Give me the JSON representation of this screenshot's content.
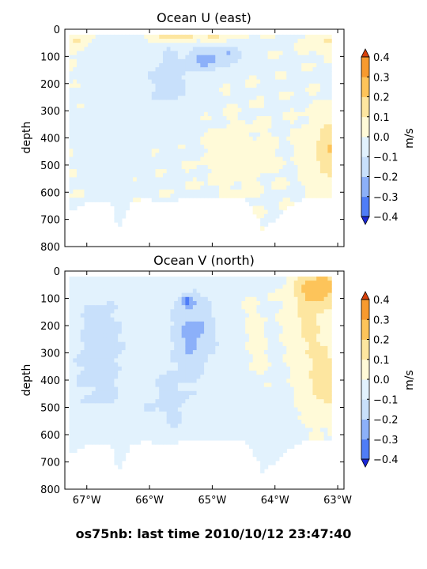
{
  "footer": {
    "text": "os75nb: last time 2010/10/12 23:47:40"
  },
  "colors": {
    "levels": [
      -0.4,
      -0.3,
      -0.2,
      -0.1,
      0.0,
      0.1,
      0.2,
      0.3,
      0.4
    ],
    "fills": [
      "#2a3cf5",
      "#4f7df7",
      "#8cb0f9",
      "#c8e0fb",
      "#e2f2fd",
      "#fffad8",
      "#fde6a0",
      "#fdc45a",
      "#f79a2e",
      "#ee5a14"
    ],
    "under": "#1a28d8",
    "over": "#d8400a"
  },
  "chart_data": [
    {
      "type": "heatmap",
      "title": "Ocean U (east)",
      "ylabel": "depth",
      "xlabel": "",
      "xlim": [
        -67.35,
        -62.9
      ],
      "ylim": [
        800,
        0
      ],
      "x_ticks": [
        -67,
        -66,
        -65,
        -64,
        -63
      ],
      "x_tick_labels": [
        "67°W",
        "66°W",
        "65°W",
        "64°W",
        "63°W"
      ],
      "y_ticks": [
        0,
        100,
        200,
        300,
        400,
        500,
        600,
        700,
        800
      ],
      "y_tick_labels": [
        "0",
        "100",
        "200",
        "300",
        "400",
        "500",
        "600",
        "700",
        "800"
      ],
      "colorbar": {
        "label": "m/s",
        "ticks": [
          -0.4,
          -0.3,
          -0.2,
          -0.1,
          0.0,
          0.1,
          0.2,
          0.3,
          0.4
        ],
        "tick_labels": [
          "−0.4",
          "−0.3",
          "−0.2",
          "−0.1",
          "0.0",
          "0.1",
          "0.2",
          "0.3",
          "0.4"
        ]
      },
      "max_depth": [
        [
          -67.3,
          670
        ],
        [
          -67.2,
          660
        ],
        [
          -67.0,
          640
        ],
        [
          -66.6,
          640
        ],
        [
          -66.5,
          740
        ],
        [
          -66.3,
          640
        ],
        [
          -66.1,
          620
        ],
        [
          -65.8,
          640
        ],
        [
          -65.4,
          620
        ],
        [
          -64.9,
          625
        ],
        [
          -64.5,
          620
        ],
        [
          -64.3,
          680
        ],
        [
          -64.2,
          740
        ],
        [
          -64.0,
          700
        ],
        [
          -63.7,
          640
        ],
        [
          -63.5,
          620
        ],
        [
          -63.2,
          620
        ],
        [
          -62.95,
          600
        ]
      ],
      "features": [
        {
          "x": -66.6,
          "z": 300,
          "sx": 0.35,
          "sz": 260,
          "v": -0.06
        },
        {
          "x": -65.7,
          "z": 180,
          "sx": 0.4,
          "sz": 160,
          "v": -0.13
        },
        {
          "x": -65.1,
          "z": 110,
          "sx": 0.25,
          "sz": 50,
          "v": -0.22
        },
        {
          "x": -64.7,
          "z": 90,
          "sx": 0.2,
          "sz": 50,
          "v": -0.16
        },
        {
          "x": -65.6,
          "z": 20,
          "sx": 0.35,
          "sz": 30,
          "v": 0.25
        },
        {
          "x": -64.9,
          "z": 20,
          "sx": 0.3,
          "sz": 30,
          "v": 0.15
        },
        {
          "x": -67.15,
          "z": 40,
          "sx": 0.15,
          "sz": 40,
          "v": 0.12
        },
        {
          "x": -63.1,
          "z": 450,
          "sx": 0.35,
          "sz": 120,
          "v": 0.2
        },
        {
          "x": -63.2,
          "z": 40,
          "sx": 0.25,
          "sz": 50,
          "v": 0.1
        },
        {
          "x": -64.6,
          "z": 470,
          "sx": 0.5,
          "sz": 120,
          "v": 0.05
        }
      ],
      "base": -0.01
    },
    {
      "type": "heatmap",
      "title": "Ocean V (north)",
      "ylabel": "depth",
      "xlabel": "",
      "xlim": [
        -67.35,
        -62.9
      ],
      "ylim": [
        800,
        0
      ],
      "x_ticks": [
        -67,
        -66,
        -65,
        -64,
        -63
      ],
      "x_tick_labels": [
        "67°W",
        "66°W",
        "65°W",
        "64°W",
        "63°W"
      ],
      "y_ticks": [
        0,
        100,
        200,
        300,
        400,
        500,
        600,
        700,
        800
      ],
      "y_tick_labels": [
        "0",
        "100",
        "200",
        "300",
        "400",
        "500",
        "600",
        "700",
        "800"
      ],
      "colorbar": {
        "label": "m/s",
        "ticks": [
          -0.4,
          -0.3,
          -0.2,
          -0.1,
          0.0,
          0.1,
          0.2,
          0.3,
          0.4
        ],
        "tick_labels": [
          "−0.4",
          "−0.3",
          "−0.2",
          "−0.1",
          "0.0",
          "0.1",
          "0.2",
          "0.3",
          "0.4"
        ]
      },
      "max_depth": [
        [
          -67.3,
          670
        ],
        [
          -67.2,
          660
        ],
        [
          -67.0,
          640
        ],
        [
          -66.6,
          640
        ],
        [
          -66.5,
          740
        ],
        [
          -66.3,
          640
        ],
        [
          -66.1,
          620
        ],
        [
          -65.8,
          640
        ],
        [
          -65.4,
          620
        ],
        [
          -64.9,
          625
        ],
        [
          -64.5,
          620
        ],
        [
          -64.3,
          680
        ],
        [
          -64.2,
          740
        ],
        [
          -64.0,
          700
        ],
        [
          -63.7,
          640
        ],
        [
          -63.5,
          620
        ],
        [
          -63.2,
          620
        ],
        [
          -62.95,
          600
        ]
      ],
      "features": [
        {
          "x": -65.3,
          "z": 220,
          "sx": 0.35,
          "sz": 140,
          "v": -0.2
        },
        {
          "x": -65.4,
          "z": 110,
          "sx": 0.1,
          "sz": 20,
          "v": -0.25
        },
        {
          "x": -66.8,
          "z": 300,
          "sx": 0.45,
          "sz": 260,
          "v": -0.12
        },
        {
          "x": -65.7,
          "z": 480,
          "sx": 0.5,
          "sz": 150,
          "v": -0.09
        },
        {
          "x": -64.3,
          "z": 250,
          "sx": 0.25,
          "sz": 200,
          "v": 0.05
        },
        {
          "x": -63.3,
          "z": 60,
          "sx": 0.4,
          "sz": 80,
          "v": 0.28
        },
        {
          "x": -63.2,
          "z": 400,
          "sx": 0.4,
          "sz": 150,
          "v": 0.18
        },
        {
          "x": -63.5,
          "z": 200,
          "sx": 0.3,
          "sz": 120,
          "v": 0.12
        }
      ],
      "base": -0.03
    }
  ]
}
